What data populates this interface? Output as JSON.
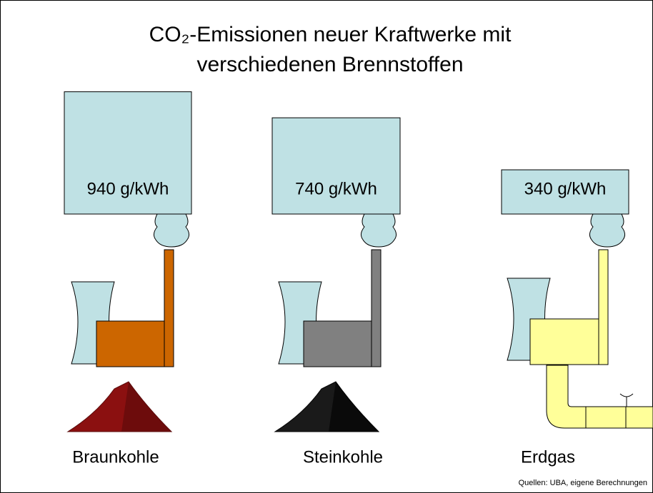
{
  "chart_data": {
    "type": "pictogram",
    "title": [
      "CO₂-Emissionen neuer Kraftwerke mit",
      "verschiedenen Brennstoffen"
    ],
    "categories": [
      "Braunkohle",
      "Steinkohle",
      "Erdgas"
    ],
    "values": [
      940,
      740,
      340
    ],
    "value_labels": [
      "940 g/kWh",
      "740 g/kWh",
      "340 g/kWh"
    ],
    "box_color": "#bfe1e4",
    "colors": [
      "#cc6600",
      "#808080",
      "#ffff99"
    ],
    "source": "Quellen: UBA, eigene Berechnungen"
  }
}
